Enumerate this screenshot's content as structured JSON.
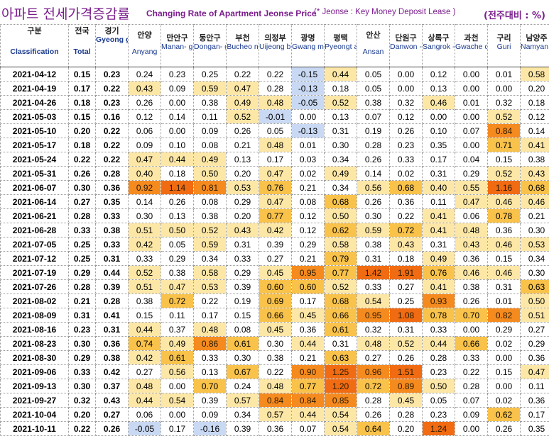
{
  "header": {
    "title_ko": "아파트 전세가격증감률",
    "title_en": "Changing Rate of Apartment Jeonse Price",
    "note": "(* Jeonse : Key Money Deposit Lease )",
    "unit": "(전주대비 : %)"
  },
  "colors": {
    "title": "#7a1d8c",
    "header_text": "#1a3a8f",
    "scale_light": "#fde7a6",
    "scale_mid": "#f9c24a",
    "scale_high": "#f58a1f",
    "scale_top": "#f06b12",
    "negative": "#c9d9f3"
  },
  "chart_data": {
    "type": "table",
    "columns": [
      {
        "ko": "구분",
        "en": "Classification"
      },
      {
        "ko": "전국",
        "en": "Total"
      },
      {
        "ko": "경기",
        "en": "Gyeong gi-do"
      },
      {
        "ko": "안양",
        "en": "Anyang"
      },
      {
        "ko": "만안구",
        "en": "Manan- gu"
      },
      {
        "ko": "동안구",
        "en": "Dongan- gu"
      },
      {
        "ko": "부천",
        "en": "Bucheo n"
      },
      {
        "ko": "의정부",
        "en": "Uijeong bu"
      },
      {
        "ko": "광명",
        "en": "Gwang myeong"
      },
      {
        "ko": "평택",
        "en": "Pyeongt aek"
      },
      {
        "ko": "안산",
        "en": "Ansan"
      },
      {
        "ko": "단원구",
        "en": "Danwon -gu"
      },
      {
        "ko": "상록구",
        "en": "Sangrok -gu"
      },
      {
        "ko": "과천",
        "en": "Gwache on"
      },
      {
        "ko": "구리",
        "en": "Guri"
      },
      {
        "ko": "남양주",
        "en": "Namyan gju"
      }
    ],
    "rows": [
      {
        "date": "2021-04-12",
        "values": [
          "0.15",
          "0.23",
          "0.24",
          "0.23",
          "0.25",
          "0.22",
          "0.22",
          "-0.15",
          "0.44",
          "0.05",
          "0.00",
          "0.12",
          "0.00",
          "0.01",
          "0.58"
        ]
      },
      {
        "date": "2021-04-19",
        "values": [
          "0.17",
          "0.22",
          "0.43",
          "0.09",
          "0.59",
          "0.47",
          "0.28",
          "-0.13",
          "0.18",
          "0.05",
          "0.00",
          "0.13",
          "0.00",
          "0.00",
          "0.20"
        ]
      },
      {
        "date": "2021-04-26",
        "values": [
          "0.18",
          "0.23",
          "0.26",
          "0.00",
          "0.38",
          "0.49",
          "0.48",
          "-0.05",
          "0.52",
          "0.38",
          "0.32",
          "0.46",
          "0.01",
          "0.32",
          "0.18"
        ]
      },
      {
        "date": "2021-05-03",
        "values": [
          "0.15",
          "0.16",
          "0.12",
          "0.14",
          "0.11",
          "0.52",
          "-0.01",
          "0.00",
          "0.13",
          "0.07",
          "0.12",
          "0.00",
          "0.00",
          "0.52",
          "0.12"
        ]
      },
      {
        "date": "2021-05-10",
        "values": [
          "0.20",
          "0.22",
          "0.06",
          "0.00",
          "0.09",
          "0.26",
          "0.05",
          "-0.13",
          "0.31",
          "0.19",
          "0.26",
          "0.10",
          "0.07",
          "0.84",
          "0.14"
        ]
      },
      {
        "date": "2021-05-17",
        "values": [
          "0.18",
          "0.22",
          "0.09",
          "0.10",
          "0.08",
          "0.21",
          "0.48",
          "0.01",
          "0.30",
          "0.28",
          "0.23",
          "0.35",
          "0.00",
          "0.71",
          "0.41"
        ]
      },
      {
        "date": "2021-05-24",
        "values": [
          "0.22",
          "0.22",
          "0.47",
          "0.44",
          "0.49",
          "0.13",
          "0.17",
          "0.03",
          "0.34",
          "0.26",
          "0.33",
          "0.17",
          "0.04",
          "0.15",
          "0.38"
        ]
      },
      {
        "date": "2021-05-31",
        "values": [
          "0.26",
          "0.28",
          "0.40",
          "0.18",
          "0.50",
          "0.20",
          "0.47",
          "0.02",
          "0.49",
          "0.14",
          "0.02",
          "0.31",
          "0.29",
          "0.52",
          "0.43"
        ]
      },
      {
        "date": "2021-06-07",
        "values": [
          "0.30",
          "0.36",
          "0.92",
          "1.14",
          "0.81",
          "0.53",
          "0.76",
          "0.21",
          "0.34",
          "0.56",
          "0.68",
          "0.40",
          "0.55",
          "1.16",
          "0.68"
        ]
      },
      {
        "date": "2021-06-14",
        "values": [
          "0.27",
          "0.35",
          "0.14",
          "0.26",
          "0.08",
          "0.29",
          "0.47",
          "0.08",
          "0.68",
          "0.26",
          "0.36",
          "0.11",
          "0.47",
          "0.46",
          "0.46"
        ]
      },
      {
        "date": "2021-06-21",
        "values": [
          "0.28",
          "0.33",
          "0.30",
          "0.13",
          "0.38",
          "0.20",
          "0.77",
          "0.12",
          "0.50",
          "0.30",
          "0.22",
          "0.41",
          "0.06",
          "0.78",
          "0.21"
        ]
      },
      {
        "date": "2021-06-28",
        "values": [
          "0.33",
          "0.38",
          "0.51",
          "0.50",
          "0.52",
          "0.43",
          "0.42",
          "0.12",
          "0.62",
          "0.59",
          "0.72",
          "0.41",
          "0.48",
          "0.36",
          "0.30"
        ]
      },
      {
        "date": "2021-07-05",
        "values": [
          "0.25",
          "0.33",
          "0.42",
          "0.05",
          "0.59",
          "0.31",
          "0.39",
          "0.29",
          "0.58",
          "0.38",
          "0.43",
          "0.31",
          "0.43",
          "0.46",
          "0.53"
        ]
      },
      {
        "date": "2021-07-12",
        "values": [
          "0.25",
          "0.31",
          "0.33",
          "0.29",
          "0.34",
          "0.33",
          "0.27",
          "0.21",
          "0.79",
          "0.31",
          "0.18",
          "0.49",
          "0.36",
          "0.15",
          "0.34"
        ]
      },
      {
        "date": "2021-07-19",
        "values": [
          "0.29",
          "0.44",
          "0.52",
          "0.38",
          "0.58",
          "0.29",
          "0.45",
          "0.95",
          "0.77",
          "1.42",
          "1.91",
          "0.76",
          "0.46",
          "0.46",
          "0.30"
        ]
      },
      {
        "date": "2021-07-26",
        "values": [
          "0.28",
          "0.39",
          "0.51",
          "0.47",
          "0.53",
          "0.39",
          "0.60",
          "0.60",
          "0.52",
          "0.33",
          "0.27",
          "0.41",
          "0.38",
          "0.31",
          "0.63"
        ]
      },
      {
        "date": "2021-08-02",
        "values": [
          "0.21",
          "0.28",
          "0.38",
          "0.72",
          "0.22",
          "0.19",
          "0.69",
          "0.17",
          "0.68",
          "0.54",
          "0.25",
          "0.93",
          "0.26",
          "0.01",
          "0.50"
        ]
      },
      {
        "date": "2021-08-09",
        "values": [
          "0.31",
          "0.41",
          "0.15",
          "0.11",
          "0.17",
          "0.15",
          "0.66",
          "0.45",
          "0.66",
          "0.95",
          "1.08",
          "0.78",
          "0.70",
          "0.82",
          "0.51"
        ]
      },
      {
        "date": "2021-08-16",
        "values": [
          "0.23",
          "0.31",
          "0.44",
          "0.37",
          "0.48",
          "0.08",
          "0.45",
          "0.36",
          "0.61",
          "0.32",
          "0.31",
          "0.33",
          "0.00",
          "0.29",
          "0.27"
        ]
      },
      {
        "date": "2021-08-23",
        "values": [
          "0.30",
          "0.36",
          "0.74",
          "0.49",
          "0.86",
          "0.61",
          "0.30",
          "0.44",
          "0.31",
          "0.48",
          "0.52",
          "0.44",
          "0.66",
          "0.02",
          "0.29"
        ]
      },
      {
        "date": "2021-08-30",
        "values": [
          "0.29",
          "0.38",
          "0.42",
          "0.61",
          "0.33",
          "0.30",
          "0.38",
          "0.21",
          "0.63",
          "0.27",
          "0.26",
          "0.28",
          "0.33",
          "0.00",
          "0.36"
        ]
      },
      {
        "date": "2021-09-06",
        "values": [
          "0.33",
          "0.42",
          "0.27",
          "0.56",
          "0.13",
          "0.67",
          "0.22",
          "0.90",
          "1.25",
          "0.96",
          "1.51",
          "0.23",
          "0.22",
          "0.15",
          "0.47"
        ]
      },
      {
        "date": "2021-09-13",
        "values": [
          "0.30",
          "0.37",
          "0.48",
          "0.00",
          "0.70",
          "0.24",
          "0.48",
          "0.77",
          "1.20",
          "0.72",
          "0.89",
          "0.50",
          "0.28",
          "0.00",
          "0.11"
        ]
      },
      {
        "date": "2021-09-27",
        "values": [
          "0.32",
          "0.43",
          "0.44",
          "0.54",
          "0.39",
          "0.57",
          "0.84",
          "0.84",
          "0.85",
          "0.28",
          "0.45",
          "0.05",
          "0.07",
          "0.02",
          "0.36"
        ]
      },
      {
        "date": "2021-10-04",
        "values": [
          "0.20",
          "0.27",
          "0.06",
          "0.00",
          "0.09",
          "0.34",
          "0.57",
          "0.44",
          "0.54",
          "0.26",
          "0.28",
          "0.23",
          "0.09",
          "0.62",
          "0.17"
        ]
      },
      {
        "date": "2021-10-11",
        "values": [
          "0.22",
          "0.26",
          "-0.05",
          "0.17",
          "-0.16",
          "0.39",
          "0.36",
          "0.07",
          "0.54",
          "0.64",
          "0.20",
          "1.24",
          "0.00",
          "0.26",
          "0.35"
        ]
      }
    ]
  }
}
